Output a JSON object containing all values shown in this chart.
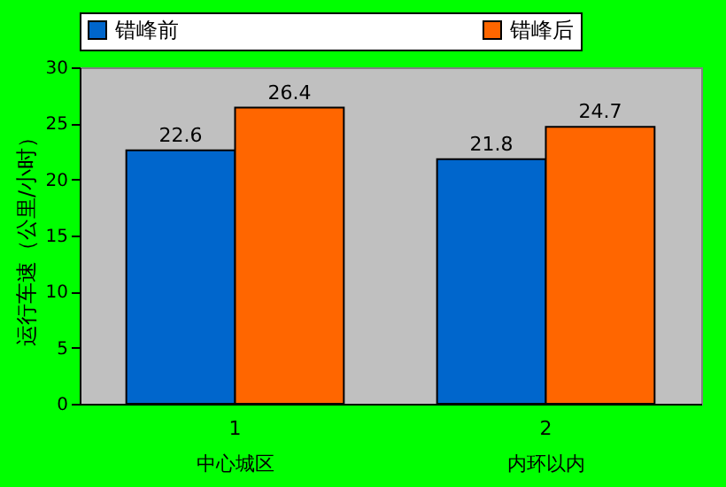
{
  "chart_data": {
    "type": "bar",
    "categories": [
      "1\n中心城区",
      "2\n内环以内"
    ],
    "ylabel": "运行车速（公里/小时）",
    "series": [
      {
        "name": "错峰前",
        "color": "#0066cc",
        "values": [
          22.6,
          21.8
        ]
      },
      {
        "name": "错峰后",
        "color": "#ff6600",
        "values": [
          26.4,
          24.7
        ]
      }
    ],
    "ylim": [
      0,
      30
    ],
    "yticks": [
      0,
      5,
      10,
      15,
      20,
      25,
      30
    ],
    "grid": false,
    "legend": "top",
    "data_labels": true
  }
}
